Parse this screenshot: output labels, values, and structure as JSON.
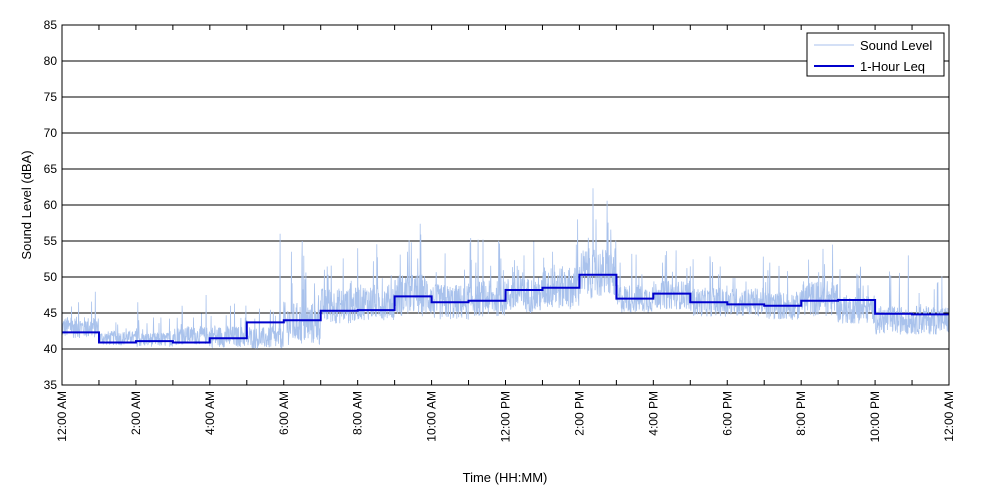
{
  "chart_data": {
    "type": "line",
    "xlabel": "Time (HH:MM)",
    "ylabel": "Sound Level (dBA)",
    "ylim": [
      35,
      85
    ],
    "xlim_hours": [
      0,
      24
    ],
    "x_tick_labels": [
      "12:00 AM",
      "2:00 AM",
      "4:00 AM",
      "6:00 AM",
      "8:00 AM",
      "10:00 AM",
      "12:00 PM",
      "2:00 PM",
      "4:00 PM",
      "6:00 PM",
      "8:00 PM",
      "10:00 PM",
      "12:00 AM"
    ],
    "y_ticks": [
      35,
      40,
      45,
      50,
      55,
      60,
      65,
      70,
      75,
      80,
      85
    ],
    "grid": "horizontal",
    "legend_position": "top-right",
    "colors": {
      "sound_level": "#a9c2ec",
      "leq": "#0000cc",
      "grid": "#000000"
    },
    "series": [
      {
        "name": "Sound Level",
        "style": "thin-line",
        "hourly_baseline": [
          41.5,
          40.5,
          40.3,
          40.6,
          40.2,
          40.0,
          40.5,
          43.5,
          44.0,
          44.5,
          44.0,
          44.5,
          45.0,
          45.5,
          47.0,
          45.0,
          45.5,
          44.5,
          44.5,
          44.0,
          44.5,
          43.5,
          42.0,
          42.0
        ],
        "hourly_range": [
          3,
          2,
          2,
          2.5,
          3,
          3,
          6,
          5,
          5,
          6,
          5,
          5,
          5,
          6,
          7,
          4,
          4,
          4,
          4,
          4,
          5,
          4,
          4,
          4
        ],
        "peaks": [
          {
            "x": 0.45,
            "y": 46.5
          },
          {
            "x": 2.05,
            "y": 46.5
          },
          {
            "x": 3.25,
            "y": 46.0
          },
          {
            "x": 3.9,
            "y": 47.5
          },
          {
            "x": 5.9,
            "y": 56.0
          },
          {
            "x": 6.5,
            "y": 55.0
          },
          {
            "x": 7.1,
            "y": 51.0
          },
          {
            "x": 8.0,
            "y": 54.0
          },
          {
            "x": 9.35,
            "y": 53.5
          },
          {
            "x": 11.2,
            "y": 52.0
          },
          {
            "x": 12.5,
            "y": 53.0
          },
          {
            "x": 13.95,
            "y": 58.0
          },
          {
            "x": 14.45,
            "y": 58.0
          },
          {
            "x": 15.1,
            "y": 52.0
          },
          {
            "x": 16.25,
            "y": 52.0
          },
          {
            "x": 19.15,
            "y": 52.0
          },
          {
            "x": 20.85,
            "y": 54.5
          },
          {
            "x": 22.9,
            "y": 53.0
          }
        ]
      },
      {
        "name": "1-Hour Leq",
        "style": "step",
        "x_hours": [
          0,
          1,
          2,
          3,
          4,
          5,
          6,
          7,
          8,
          9,
          10,
          11,
          12,
          13,
          14,
          15,
          16,
          17,
          18,
          19,
          20,
          21,
          22,
          23
        ],
        "values": [
          42.3,
          40.9,
          41.1,
          40.9,
          41.5,
          43.7,
          44.0,
          45.3,
          45.4,
          47.3,
          46.5,
          46.7,
          48.2,
          48.5,
          50.3,
          47.0,
          47.7,
          46.5,
          46.2,
          46.0,
          46.7,
          46.8,
          44.9,
          44.8
        ]
      }
    ]
  }
}
